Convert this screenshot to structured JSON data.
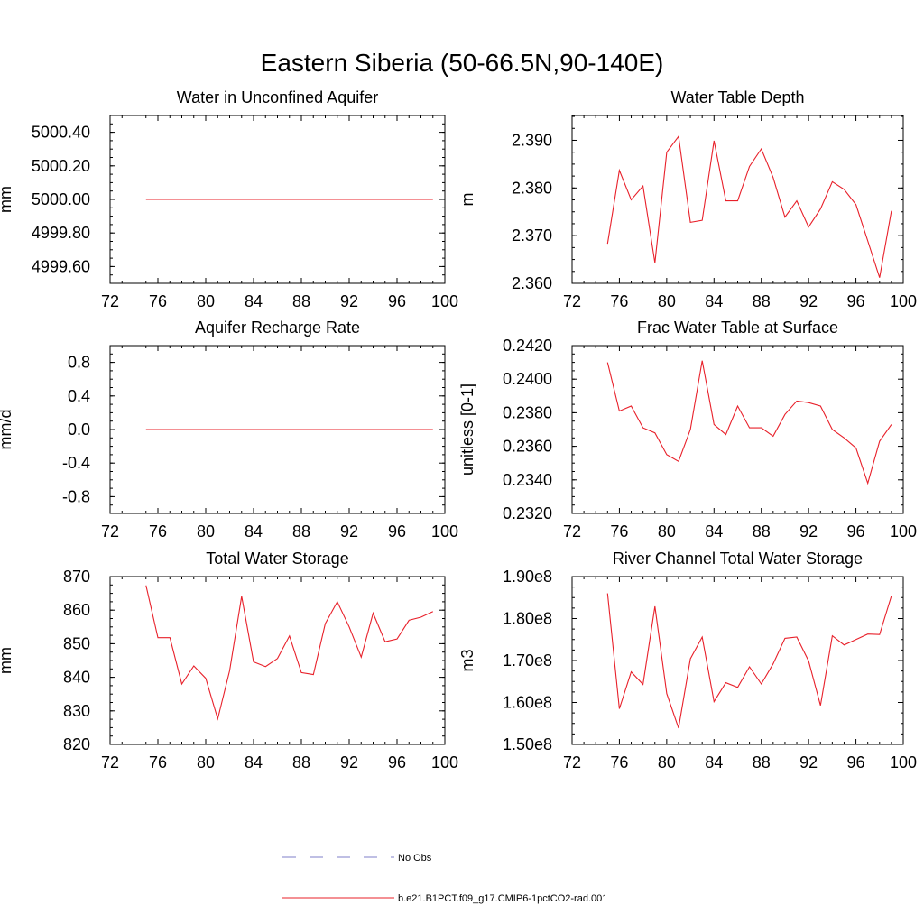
{
  "figure_title": "Eastern Siberia (50-66.5N,90-140E)",
  "colors": {
    "model_line": "#e8202a",
    "obs_line": "#7f7fc8",
    "axis": "#000000"
  },
  "legend": [
    {
      "label": "No Obs",
      "style": "dashed",
      "color": "#7f7fc8"
    },
    {
      "label": "b.e21.B1PCT.f09_g17.CMIP6-1pctCO2-rad.001",
      "style": "solid",
      "color": "#e8202a"
    }
  ],
  "chart_data": [
    {
      "type": "line",
      "title": "Water in Unconfined Aquifer",
      "ylabel": "mm",
      "xlim": [
        72,
        100
      ],
      "ylim": [
        4999.5,
        5000.5
      ],
      "xticks": [
        72,
        76,
        80,
        84,
        88,
        92,
        96,
        100
      ],
      "xtick_labels": [
        "72",
        "76",
        "80",
        "84",
        "88",
        "92",
        "96",
        "100"
      ],
      "yticks": [
        4999.6,
        4999.8,
        5000.0,
        5000.2,
        5000.4
      ],
      "ytick_labels": [
        "4999.60",
        "4999.80",
        "5000.00",
        "5000.20",
        "5000.40"
      ],
      "x": [
        75,
        76,
        77,
        78,
        79,
        80,
        81,
        82,
        83,
        84,
        85,
        86,
        87,
        88,
        89,
        90,
        91,
        92,
        93,
        94,
        95,
        96,
        97,
        98,
        99
      ],
      "y": [
        5000,
        5000,
        5000,
        5000,
        5000,
        5000,
        5000,
        5000,
        5000,
        5000,
        5000,
        5000,
        5000,
        5000,
        5000,
        5000,
        5000,
        5000,
        5000,
        5000,
        5000,
        5000,
        5000,
        5000,
        5000
      ]
    },
    {
      "type": "line",
      "title": "Water Table Depth",
      "ylabel": "m",
      "xlim": [
        72,
        100
      ],
      "ylim": [
        2.36,
        2.3952
      ],
      "xticks": [
        72,
        76,
        80,
        84,
        88,
        92,
        96,
        100
      ],
      "xtick_labels": [
        "72",
        "76",
        "80",
        "84",
        "88",
        "92",
        "96",
        "100"
      ],
      "yticks": [
        2.36,
        2.37,
        2.38,
        2.39
      ],
      "ytick_labels": [
        "2.360",
        "2.370",
        "2.380",
        "2.390"
      ],
      "x": [
        75,
        76,
        77,
        78,
        79,
        80,
        81,
        82,
        83,
        84,
        85,
        86,
        87,
        88,
        89,
        90,
        91,
        92,
        93,
        94,
        95,
        96,
        97,
        98,
        99
      ],
      "y": [
        2.3683,
        2.3837,
        2.3775,
        2.3804,
        2.3643,
        2.3875,
        2.3908,
        2.3728,
        2.3732,
        2.3899,
        2.3773,
        2.3773,
        2.3845,
        2.3882,
        2.3822,
        2.3739,
        2.3773,
        2.3718,
        2.3756,
        2.3813,
        2.3797,
        2.3765,
        2.3689,
        2.3612,
        2.3752
      ]
    },
    {
      "type": "line",
      "title": "Aquifer Recharge Rate",
      "ylabel": "mm/d",
      "xlim": [
        72,
        100
      ],
      "ylim": [
        -1.0,
        1.0
      ],
      "xticks": [
        72,
        76,
        80,
        84,
        88,
        92,
        96,
        100
      ],
      "xtick_labels": [
        "72",
        "76",
        "80",
        "84",
        "88",
        "92",
        "96",
        "100"
      ],
      "yticks": [
        -0.8,
        -0.4,
        0.0,
        0.4,
        0.8
      ],
      "ytick_labels": [
        "-0.8",
        "-0.4",
        "0.0",
        "0.4",
        "0.8"
      ],
      "x": [
        75,
        76,
        77,
        78,
        79,
        80,
        81,
        82,
        83,
        84,
        85,
        86,
        87,
        88,
        89,
        90,
        91,
        92,
        93,
        94,
        95,
        96,
        97,
        98,
        99
      ],
      "y": [
        0,
        0,
        0,
        0,
        0,
        0,
        0,
        0,
        0,
        0,
        0,
        0,
        0,
        0,
        0,
        0,
        0,
        0,
        0,
        0,
        0,
        0,
        0,
        0,
        0
      ]
    },
    {
      "type": "line",
      "title": "Frac Water Table at Surface",
      "ylabel": "unitless [0-1]",
      "xlim": [
        72,
        100
      ],
      "ylim": [
        0.232,
        0.242
      ],
      "xticks": [
        72,
        76,
        80,
        84,
        88,
        92,
        96,
        100
      ],
      "xtick_labels": [
        "72",
        "76",
        "80",
        "84",
        "88",
        "92",
        "96",
        "100"
      ],
      "yticks": [
        0.232,
        0.234,
        0.236,
        0.238,
        0.24,
        0.242
      ],
      "ytick_labels": [
        "0.2320",
        "0.2340",
        "0.2360",
        "0.2380",
        "0.2400",
        "0.2420"
      ],
      "x": [
        75,
        76,
        77,
        78,
        79,
        80,
        81,
        82,
        83,
        84,
        85,
        86,
        87,
        88,
        89,
        90,
        91,
        92,
        93,
        94,
        95,
        96,
        97,
        98,
        99
      ],
      "y": [
        0.241,
        0.2381,
        0.2384,
        0.2371,
        0.2368,
        0.2355,
        0.2351,
        0.237,
        0.2411,
        0.2373,
        0.2367,
        0.2384,
        0.2371,
        0.2371,
        0.2366,
        0.2379,
        0.2387,
        0.2386,
        0.2384,
        0.237,
        0.2365,
        0.2359,
        0.2338,
        0.2363,
        0.2373
      ]
    },
    {
      "type": "line",
      "title": "Total Water Storage",
      "ylabel": "mm",
      "xlim": [
        72,
        100
      ],
      "ylim": [
        820,
        870
      ],
      "xticks": [
        72,
        76,
        80,
        84,
        88,
        92,
        96,
        100
      ],
      "xtick_labels": [
        "72",
        "76",
        "80",
        "84",
        "88",
        "92",
        "96",
        "100"
      ],
      "yticks": [
        820,
        830,
        840,
        850,
        860,
        870
      ],
      "ytick_labels": [
        "820",
        "830",
        "840",
        "850",
        "860",
        "870"
      ],
      "x": [
        75,
        76,
        77,
        78,
        79,
        80,
        81,
        82,
        83,
        84,
        85,
        86,
        87,
        88,
        89,
        90,
        91,
        92,
        93,
        94,
        95,
        96,
        97,
        98,
        99
      ],
      "y": [
        867.4,
        851.8,
        851.8,
        838.0,
        843.4,
        839.7,
        827.6,
        842.0,
        864.1,
        844.6,
        843.2,
        845.6,
        852.3,
        841.4,
        840.8,
        856.0,
        862.5,
        855.0,
        846.0,
        859.1,
        850.6,
        851.4,
        857.0,
        857.9,
        859.6
      ]
    },
    {
      "type": "line",
      "title": "River Channel Total Water Storage",
      "ylabel": "m3",
      "xlim": [
        72,
        100
      ],
      "ylim": [
        150000000,
        190000000
      ],
      "xticks": [
        72,
        76,
        80,
        84,
        88,
        92,
        96,
        100
      ],
      "xtick_labels": [
        "72",
        "76",
        "80",
        "84",
        "88",
        "92",
        "96",
        "100"
      ],
      "yticks": [
        150000000,
        160000000,
        170000000,
        180000000,
        190000000
      ],
      "ytick_labels": [
        "1.50e8",
        "1.60e8",
        "1.70e8",
        "1.80e8",
        "1.90e8"
      ],
      "x": [
        75,
        76,
        77,
        78,
        79,
        80,
        81,
        82,
        83,
        84,
        85,
        86,
        87,
        88,
        89,
        90,
        91,
        92,
        93,
        94,
        95,
        96,
        97,
        98,
        99
      ],
      "y": [
        186000000,
        158500000,
        167300000,
        164300000,
        182900000,
        162100000,
        153900000,
        170400000,
        175600000,
        160200000,
        164700000,
        163600000,
        168500000,
        164400000,
        169200000,
        175300000,
        175600000,
        169900000,
        159300000,
        175900000,
        173700000,
        175000000,
        176300000,
        176200000,
        185400000
      ]
    }
  ]
}
